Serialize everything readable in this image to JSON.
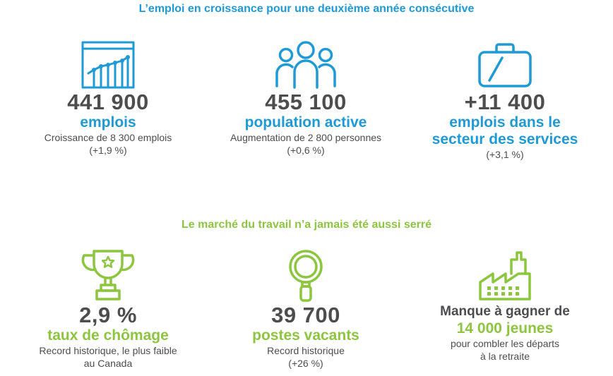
{
  "section1": {
    "title": "L’emploi en croissance pour une deuxième année consécutive",
    "stats": [
      {
        "value": "441 900",
        "label": "emplois",
        "desc1": "Croissance de 8 300 emplois",
        "desc2": "(+1,9 %)",
        "icon": "bar-chart-icon"
      },
      {
        "value": "455 100",
        "label": "population active",
        "desc1": "Augmentation de 2 800 personnes",
        "desc2": "(+0,6 %)",
        "icon": "people-group-icon"
      },
      {
        "value": "+11 400",
        "label1": "emplois dans le",
        "label2": "secteur des services",
        "desc1": "(+3,1 %)",
        "icon": "briefcase-icon"
      }
    ]
  },
  "section2": {
    "title": "Le marché du travail n’a jamais été aussi serré",
    "stats": [
      {
        "value": "2,9 %",
        "label": "taux de chômage",
        "desc1": "Record historique, le plus faible",
        "desc2": "au Canada",
        "icon": "trophy-icon"
      },
      {
        "value": "39 700",
        "label": "postes vacants",
        "desc1": "Record historique",
        "desc2": "(+26 %)",
        "icon": "magnifier-icon"
      },
      {
        "head": "Manque à gagner de",
        "label": "14 000 jeunes",
        "desc1": "pour combler les départs",
        "desc2": "à la retraite",
        "icon": "factory-icon"
      }
    ]
  },
  "colors": {
    "blue": "#1e9ad6",
    "green": "#8cc63f",
    "dark": "#4d4d4f"
  }
}
